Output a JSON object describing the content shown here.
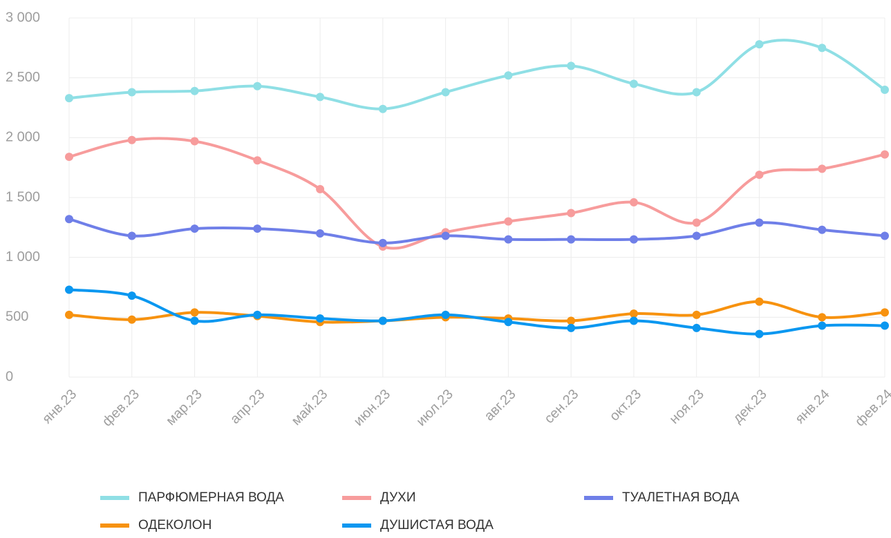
{
  "chart_data": {
    "type": "line",
    "categories": [
      "янв.23",
      "фев.23",
      "мар.23",
      "апр.23",
      "май.23",
      "июн.23",
      "июл.23",
      "авг.23",
      "сен.23",
      "окт.23",
      "ноя.23",
      "дек.23",
      "янв.24",
      "фев.24"
    ],
    "series": [
      {
        "name": "ПАРФЮМЕРНАЯ ВОДА",
        "color": "#8fdfe5",
        "values": [
          2330,
          2380,
          2390,
          2430,
          2340,
          2240,
          2380,
          2520,
          2600,
          2450,
          2380,
          2780,
          2750,
          2400
        ]
      },
      {
        "name": "ДУХИ",
        "color": "#f79c9c",
        "values": [
          1840,
          1980,
          1970,
          1810,
          1570,
          1090,
          1210,
          1300,
          1370,
          1460,
          1290,
          1690,
          1740,
          1860
        ]
      },
      {
        "name": "ТУАЛЕТНАЯ ВОДА",
        "color": "#6f7fe8",
        "values": [
          1320,
          1180,
          1240,
          1240,
          1200,
          1120,
          1180,
          1150,
          1150,
          1150,
          1180,
          1290,
          1230,
          1180
        ]
      },
      {
        "name": "ОДЕКОЛОН",
        "color": "#f7920f",
        "values": [
          520,
          480,
          540,
          510,
          460,
          470,
          500,
          490,
          470,
          530,
          520,
          630,
          500,
          540
        ]
      },
      {
        "name": "ДУШИСТАЯ ВОДА",
        "color": "#0a97f0",
        "values": [
          730,
          680,
          470,
          520,
          490,
          470,
          520,
          460,
          410,
          470,
          410,
          360,
          430,
          430
        ]
      }
    ],
    "ylim": [
      0,
      3000
    ],
    "yticks": [
      0,
      500,
      {
        "value": 1000,
        "label": "1 000"
      },
      {
        "value": 1500,
        "label": "1 500"
      },
      {
        "value": 2000,
        "label": "2 000"
      },
      {
        "value": 2500,
        "label": "2 500"
      },
      {
        "value": 3000,
        "label": "3 000"
      }
    ],
    "grid": true
  }
}
